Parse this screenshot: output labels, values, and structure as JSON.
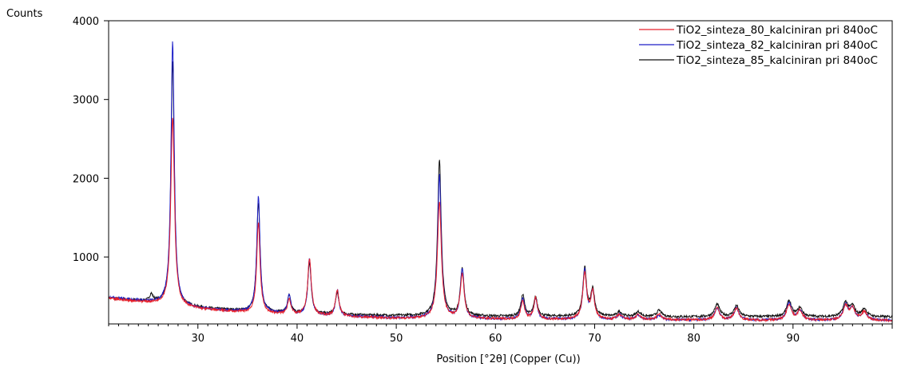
{
  "chart_data": {
    "type": "line",
    "ylabel": "Counts",
    "xlabel": "Position [°2θ] (Copper (Cu))",
    "xlim": [
      21,
      100
    ],
    "ylim": [
      150,
      4000
    ],
    "x_ticks": [
      30,
      40,
      50,
      60,
      70,
      80,
      90
    ],
    "y_ticks": [
      1000,
      2000,
      3000,
      4000
    ],
    "legend_position": "top-right",
    "grid": false,
    "series": [
      {
        "name": "TiO2_sinteza_80_kalciniran pri 840oC",
        "color": "#e8202a",
        "baseline": [
          [
            21,
            470
          ],
          [
            25,
            420
          ],
          [
            30,
            340
          ],
          [
            35,
            290
          ],
          [
            40,
            260
          ],
          [
            45,
            240
          ],
          [
            50,
            220
          ],
          [
            55,
            215
          ],
          [
            60,
            210
          ],
          [
            65,
            205
          ],
          [
            70,
            205
          ],
          [
            75,
            200
          ],
          [
            80,
            200
          ],
          [
            85,
            195
          ],
          [
            90,
            195
          ],
          [
            95,
            195
          ],
          [
            100,
            190
          ]
        ],
        "peaks": [
          [
            27.45,
            2400,
            0.22
          ],
          [
            36.1,
            1150,
            0.2
          ],
          [
            39.2,
            200,
            0.2
          ],
          [
            41.25,
            720,
            0.22
          ],
          [
            44.05,
            330,
            0.22
          ],
          [
            54.35,
            1480,
            0.24
          ],
          [
            56.65,
            560,
            0.24
          ],
          [
            62.75,
            230,
            0.22
          ],
          [
            64.05,
            270,
            0.22
          ],
          [
            69.0,
            580,
            0.24
          ],
          [
            69.8,
            340,
            0.22
          ],
          [
            72.5,
            60,
            0.3
          ],
          [
            74.4,
            60,
            0.3
          ],
          [
            76.5,
            70,
            0.3
          ],
          [
            82.35,
            150,
            0.3
          ],
          [
            84.3,
            150,
            0.3
          ],
          [
            89.6,
            200,
            0.3
          ],
          [
            90.7,
            120,
            0.3
          ],
          [
            95.3,
            180,
            0.3
          ],
          [
            96.0,
            150,
            0.3
          ],
          [
            97.2,
            110,
            0.3
          ]
        ]
      },
      {
        "name": "TiO2_sinteza_82_kalciniran pri 840oC",
        "color": "#1d1fc8",
        "baseline": [
          [
            21,
            490
          ],
          [
            25,
            430
          ],
          [
            30,
            345
          ],
          [
            35,
            300
          ],
          [
            40,
            265
          ],
          [
            45,
            245
          ],
          [
            50,
            225
          ],
          [
            55,
            220
          ],
          [
            60,
            212
          ],
          [
            65,
            208
          ],
          [
            70,
            206
          ],
          [
            75,
            200
          ],
          [
            80,
            200
          ],
          [
            85,
            196
          ],
          [
            90,
            196
          ],
          [
            95,
            196
          ],
          [
            100,
            192
          ]
        ],
        "peaks": [
          [
            27.45,
            3350,
            0.2
          ],
          [
            36.1,
            1480,
            0.2
          ],
          [
            39.2,
            240,
            0.2
          ],
          [
            41.25,
            720,
            0.2
          ],
          [
            44.05,
            330,
            0.2
          ],
          [
            54.35,
            1820,
            0.22
          ],
          [
            56.65,
            620,
            0.22
          ],
          [
            62.75,
            260,
            0.22
          ],
          [
            64.05,
            260,
            0.22
          ],
          [
            69.0,
            620,
            0.22
          ],
          [
            69.8,
            340,
            0.22
          ],
          [
            72.5,
            60,
            0.3
          ],
          [
            74.4,
            60,
            0.3
          ],
          [
            76.5,
            60,
            0.3
          ],
          [
            82.35,
            150,
            0.3
          ],
          [
            84.3,
            150,
            0.3
          ],
          [
            89.6,
            220,
            0.3
          ],
          [
            90.7,
            120,
            0.3
          ],
          [
            95.3,
            180,
            0.3
          ],
          [
            96.0,
            150,
            0.3
          ],
          [
            97.2,
            110,
            0.3
          ]
        ]
      },
      {
        "name": "TiO2_sinteza_85_kalciniran pri 840oC",
        "color": "#111111",
        "baseline": [
          [
            21,
            480
          ],
          [
            25,
            430
          ],
          [
            30,
            355
          ],
          [
            35,
            310
          ],
          [
            40,
            280
          ],
          [
            45,
            265
          ],
          [
            50,
            255
          ],
          [
            55,
            250
          ],
          [
            60,
            245
          ],
          [
            65,
            245
          ],
          [
            70,
            245
          ],
          [
            75,
            240
          ],
          [
            80,
            240
          ],
          [
            85,
            240
          ],
          [
            90,
            240
          ],
          [
            95,
            240
          ],
          [
            100,
            238
          ]
        ],
        "peaks": [
          [
            25.3,
            90,
            0.2
          ],
          [
            27.45,
            3100,
            0.2
          ],
          [
            36.1,
            1400,
            0.2
          ],
          [
            39.2,
            220,
            0.2
          ],
          [
            41.25,
            660,
            0.2
          ],
          [
            44.05,
            280,
            0.2
          ],
          [
            54.35,
            1990,
            0.22
          ],
          [
            56.65,
            600,
            0.22
          ],
          [
            62.75,
            270,
            0.22
          ],
          [
            64.05,
            240,
            0.22
          ],
          [
            69.0,
            610,
            0.22
          ],
          [
            69.8,
            340,
            0.22
          ],
          [
            72.5,
            60,
            0.3
          ],
          [
            74.4,
            60,
            0.3
          ],
          [
            76.5,
            80,
            0.3
          ],
          [
            82.35,
            160,
            0.3
          ],
          [
            84.3,
            140,
            0.3
          ],
          [
            89.6,
            200,
            0.3
          ],
          [
            90.7,
            110,
            0.3
          ],
          [
            95.3,
            180,
            0.3
          ],
          [
            96.0,
            130,
            0.3
          ],
          [
            97.2,
            100,
            0.3
          ]
        ]
      }
    ]
  }
}
